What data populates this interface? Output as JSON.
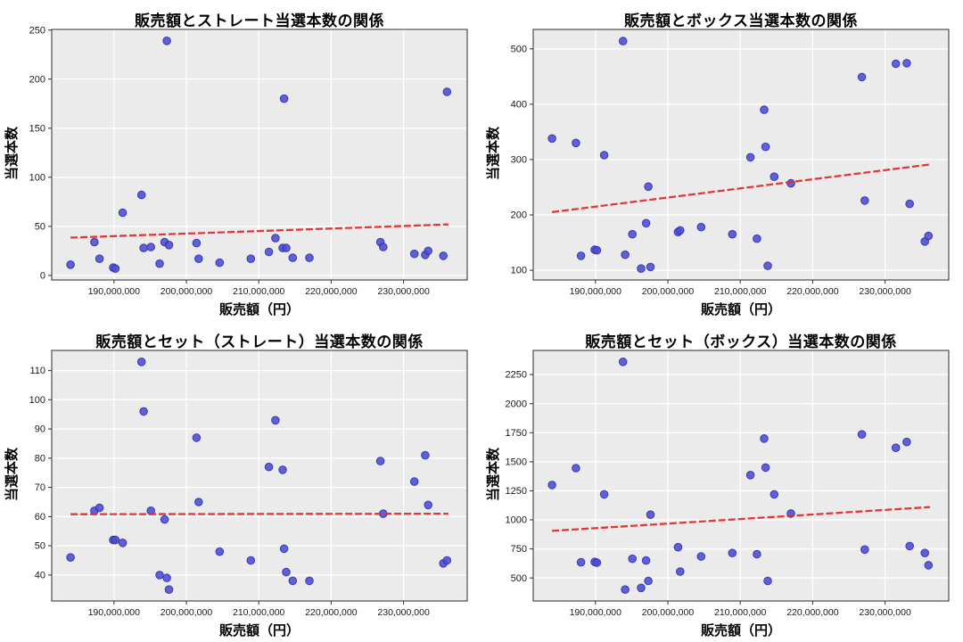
{
  "style": {
    "page_bg": "#ffffff",
    "plot_bg": "#ebebec",
    "grid_color": "#ffffff",
    "dot_fill": "#4c4cd2",
    "dot_edge": "#3030b0",
    "trend_color": "#e02d2d",
    "spine_color": "#2b2b2b",
    "tick_text_color": "#1a1a1a"
  },
  "chart_data": [
    {
      "type": "scatter",
      "title": "販売額とストレート当選本数の関係",
      "xlabel": "販売額（円）",
      "ylabel": "当選本数",
      "grid": true,
      "legend": "none",
      "xlim_millions": [
        181.4,
        238.8
      ],
      "ylim": [
        -4.6,
        250.6
      ],
      "xticks_millions": [
        190,
        200,
        210,
        220,
        230
      ],
      "xtick_labels": [
        "190,000,000",
        "200,000,000",
        "210,000,000",
        "220,000,000",
        "230,000,000"
      ],
      "yticks": [
        0,
        50,
        100,
        150,
        200,
        250
      ],
      "x_millions": [
        184.0,
        187.3,
        188.0,
        189.9,
        190.2,
        191.2,
        193.8,
        194.1,
        195.1,
        196.3,
        197.0,
        197.3,
        197.6,
        201.4,
        201.7,
        204.6,
        208.9,
        211.4,
        212.3,
        213.3,
        213.5,
        213.8,
        214.7,
        217.0,
        226.8,
        227.2,
        231.5,
        233.0,
        233.4,
        235.5,
        236.0
      ],
      "y": [
        11,
        34,
        17,
        8,
        7,
        64,
        82,
        28,
        29,
        12,
        34,
        239,
        31,
        33,
        17,
        13,
        17,
        24,
        38,
        28,
        180,
        28,
        18,
        18,
        34,
        29,
        22,
        21,
        25,
        20,
        187
      ],
      "trend": {
        "x_millions": [
          184.0,
          236.2
        ],
        "y": [
          38.5,
          52
        ]
      }
    },
    {
      "type": "scatter",
      "title": "販売額とボックス当選本数の関係",
      "xlabel": "販売額（円）",
      "ylabel": "当選本数",
      "grid": true,
      "legend": "none",
      "xlim_millions": [
        181.4,
        238.8
      ],
      "ylim": [
        82.4,
        535.1
      ],
      "xticks_millions": [
        190,
        200,
        210,
        220,
        230
      ],
      "xtick_labels": [
        "190,000,000",
        "200,000,000",
        "210,000,000",
        "220,000,000",
        "230,000,000"
      ],
      "yticks": [
        100,
        200,
        300,
        400,
        500
      ],
      "x_millions": [
        184.0,
        187.3,
        188.0,
        189.9,
        190.2,
        191.2,
        193.8,
        194.1,
        195.1,
        196.3,
        197.0,
        197.3,
        197.6,
        201.4,
        201.7,
        204.6,
        208.9,
        211.4,
        212.3,
        213.3,
        213.5,
        213.8,
        214.7,
        217.0,
        226.8,
        227.2,
        231.5,
        233.0,
        233.4,
        235.5,
        236.0
      ],
      "y": [
        338,
        330,
        126,
        137,
        136,
        308,
        514,
        128,
        165,
        103,
        185,
        251,
        106,
        169,
        172,
        178,
        165,
        304,
        157,
        390,
        323,
        108,
        269,
        257,
        449,
        226,
        473,
        474,
        220,
        152,
        162
      ],
      "trend": {
        "x_millions": [
          184.0,
          236.2
        ],
        "y": [
          205,
          291
        ]
      }
    },
    {
      "type": "scatter",
      "title": "販売額とセット（ストレート）当選本数の関係",
      "xlabel": "販売額（円）",
      "ylabel": "当選本数",
      "grid": true,
      "legend": "none",
      "xlim_millions": [
        181.4,
        238.8
      ],
      "ylim": [
        31.1,
        116.9
      ],
      "xticks_millions": [
        190,
        200,
        210,
        220,
        230
      ],
      "xtick_labels": [
        "190,000,000",
        "200,000,000",
        "210,000,000",
        "220,000,000",
        "230,000,000"
      ],
      "yticks": [
        40,
        50,
        60,
        70,
        80,
        90,
        100,
        110
      ],
      "x_millions": [
        184.0,
        187.3,
        188.0,
        189.9,
        190.2,
        191.2,
        193.8,
        194.1,
        195.1,
        196.3,
        197.0,
        197.3,
        197.6,
        201.4,
        201.7,
        204.6,
        208.9,
        211.4,
        212.3,
        213.3,
        213.5,
        213.8,
        214.7,
        217.0,
        226.8,
        227.2,
        231.5,
        233.0,
        233.4,
        235.5,
        236.0
      ],
      "y": [
        46,
        62,
        63,
        52,
        52,
        51,
        113,
        96,
        62,
        40,
        59,
        39,
        35,
        87,
        65,
        48,
        45,
        77,
        93,
        76,
        49,
        41,
        38,
        38,
        79,
        61,
        72,
        81,
        64,
        44,
        45
      ],
      "trend": {
        "x_millions": [
          184.0,
          236.2
        ],
        "y": [
          60.8,
          61.0
        ]
      }
    },
    {
      "type": "scatter",
      "title": "販売額とセット（ボックス）当選本数の関係",
      "xlabel": "販売額（円）",
      "ylabel": "当選本数",
      "grid": true,
      "legend": "none",
      "xlim_millions": [
        181.4,
        238.8
      ],
      "ylim": [
        302,
        2458
      ],
      "xticks_millions": [
        190,
        200,
        210,
        220,
        230
      ],
      "xtick_labels": [
        "190,000,000",
        "200,000,000",
        "210,000,000",
        "220,000,000",
        "230,000,000"
      ],
      "yticks": [
        500,
        750,
        1000,
        1250,
        1500,
        1750,
        2000,
        2250
      ],
      "x_millions": [
        184.0,
        187.3,
        188.0,
        189.9,
        190.2,
        191.2,
        193.8,
        194.1,
        195.1,
        196.3,
        197.0,
        197.3,
        197.6,
        201.4,
        201.7,
        204.6,
        208.9,
        211.4,
        212.3,
        213.3,
        213.5,
        213.8,
        214.7,
        217.0,
        226.8,
        227.2,
        231.5,
        233.0,
        233.4,
        235.5,
        236.0
      ],
      "y": [
        1300,
        1445,
        635,
        638,
        632,
        1220,
        2360,
        400,
        665,
        415,
        650,
        475,
        1045,
        765,
        555,
        685,
        715,
        1385,
        705,
        1700,
        1450,
        475,
        1220,
        1055,
        1735,
        745,
        1620,
        1670,
        775,
        715,
        610
      ],
      "trend": {
        "x_millions": [
          184.0,
          236.2
        ],
        "y": [
          905,
          1110
        ]
      }
    }
  ]
}
